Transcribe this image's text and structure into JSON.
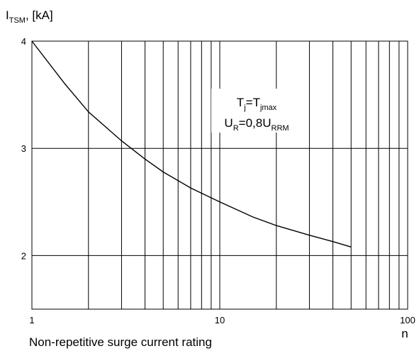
{
  "chart_data": {
    "type": "line",
    "title": "",
    "caption": "Non-repetitive surge current rating",
    "xlabel": "n",
    "ylabel": {
      "base": "I",
      "sub": "TSM",
      "suffix": ", [kA]"
    },
    "x_scale": "log",
    "xlim": [
      1,
      100
    ],
    "ylim": [
      1.5,
      4
    ],
    "xticks": [
      1,
      10,
      100
    ],
    "xtick_labels": [
      "1",
      "10",
      "100"
    ],
    "yticks": [
      2,
      3,
      4
    ],
    "ytick_labels": [
      "2",
      "3",
      "4"
    ],
    "grid": true,
    "annotation": {
      "line1": {
        "a": "T",
        "a_sub": "j",
        "eq": "=T",
        "b_sub": "jmax"
      },
      "line2": {
        "a": "U",
        "a_sub": "R",
        "eq": "=0,8U",
        "b_sub": "RRM"
      }
    },
    "series": [
      {
        "x": [
          1,
          1.5,
          2,
          3,
          4,
          5,
          7,
          10,
          15,
          20,
          30,
          40,
          50
        ],
        "y": [
          4.0,
          3.6,
          3.34,
          3.07,
          2.9,
          2.78,
          2.63,
          2.5,
          2.36,
          2.28,
          2.19,
          2.13,
          2.08
        ]
      }
    ]
  }
}
